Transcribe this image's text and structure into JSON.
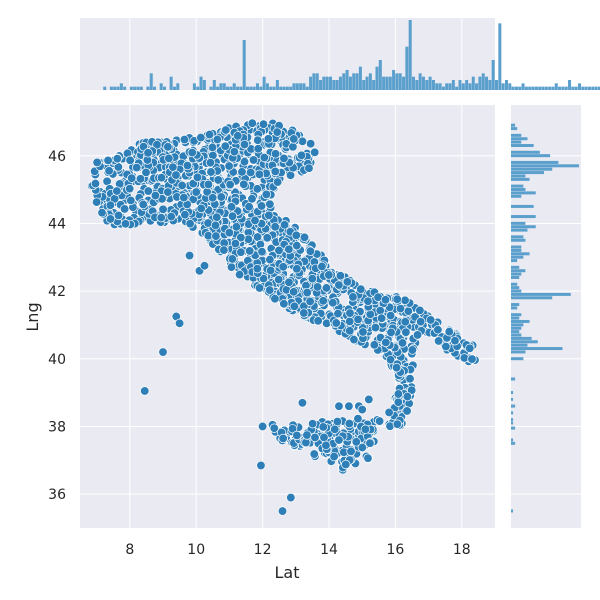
{
  "chart_data": {
    "type": "scatter",
    "kind": "joint plot with marginal histograms",
    "xlabel": "Lat",
    "ylabel": "Lng",
    "xlim": [
      6.5,
      19.0
    ],
    "ylim": [
      35.0,
      47.5
    ],
    "x_ticks": [
      8,
      10,
      12,
      14,
      16,
      18
    ],
    "y_ticks": [
      36,
      38,
      40,
      42,
      44,
      46
    ],
    "x_tick_labels": [
      "8",
      "10",
      "12",
      "14",
      "16",
      "18"
    ],
    "y_tick_labels": [
      "36",
      "38",
      "40",
      "42",
      "44",
      "46"
    ],
    "grid": true,
    "style": "seaborn darkgrid",
    "colors": {
      "point": "#2e7fb8",
      "point_edge": "#ffffff",
      "bar": "#5b9fcd",
      "panel_bg": "#eaeaf2",
      "grid": "#ffffff"
    },
    "points_approx": "dense cloud of several thousand points tracing the shape of Italy",
    "outlier_points": [
      [
        8.45,
        39.05
      ],
      [
        9.0,
        40.2
      ],
      [
        9.4,
        41.25
      ],
      [
        9.5,
        41.05
      ],
      [
        9.8,
        43.05
      ],
      [
        10.1,
        42.6
      ],
      [
        10.25,
        42.75
      ],
      [
        12.0,
        38.0
      ],
      [
        12.3,
        38.05
      ],
      [
        12.35,
        37.95
      ],
      [
        13.2,
        38.7
      ],
      [
        14.3,
        38.6
      ],
      [
        14.3,
        37.6
      ],
      [
        14.6,
        38.6
      ],
      [
        14.9,
        38.6
      ],
      [
        15.2,
        38.8
      ],
      [
        11.95,
        36.85
      ],
      [
        12.85,
        35.9
      ],
      [
        12.6,
        35.5
      ],
      [
        15.0,
        38.5
      ]
    ],
    "marginal_x_histogram": {
      "bin_start": 6.5,
      "bin_width": 0.1,
      "counts": [
        0,
        0,
        0,
        0,
        0,
        0,
        0,
        1,
        0,
        1,
        1,
        1,
        2,
        1,
        0,
        1,
        1,
        1,
        1,
        0,
        1,
        5,
        1,
        0,
        2,
        1,
        0,
        4,
        1,
        2,
        0,
        0,
        0,
        0,
        2,
        1,
        4,
        3,
        0,
        1,
        3,
        1,
        2,
        2,
        1,
        1,
        2,
        1,
        1,
        15,
        1,
        1,
        1,
        2,
        1,
        4,
        2,
        1,
        1,
        3,
        1,
        1,
        1,
        1,
        2,
        2,
        2,
        2,
        1,
        4,
        5,
        5,
        3,
        4,
        4,
        4,
        3,
        3,
        4,
        5,
        6,
        4,
        5,
        5,
        7,
        3,
        4,
        5,
        3,
        7,
        9,
        4,
        4,
        4,
        6,
        5,
        5,
        4,
        13,
        21,
        4,
        3,
        5,
        4,
        3,
        4,
        3,
        2,
        2,
        1,
        2,
        2,
        3,
        1,
        3,
        2,
        3,
        2,
        4,
        2,
        4,
        5,
        4,
        3,
        9,
        3,
        20,
        2,
        3,
        2,
        1,
        1,
        1,
        2,
        1,
        1,
        1,
        1,
        1,
        1,
        1,
        1,
        1,
        2,
        1,
        1,
        1,
        3,
        1,
        1,
        2,
        1,
        1,
        1,
        1,
        1,
        1,
        1,
        1,
        0,
        1,
        2,
        1,
        2,
        1,
        1,
        1,
        2,
        1,
        1,
        1,
        1,
        2,
        0,
        1,
        1,
        1,
        1,
        1,
        1,
        1,
        2,
        1,
        1,
        1,
        1,
        1,
        1,
        1,
        1,
        1,
        1,
        2,
        1,
        1,
        1,
        1,
        1,
        3,
        1,
        1,
        2,
        1,
        1,
        1,
        1,
        2,
        1,
        1,
        1,
        1,
        2,
        1,
        1,
        1,
        1,
        1,
        1,
        2,
        1,
        1,
        2,
        1,
        1,
        1,
        1,
        1,
        1,
        2,
        1,
        1,
        1,
        1,
        1,
        2,
        1,
        1,
        1,
        1,
        1,
        1,
        1,
        1,
        2,
        1,
        1,
        1,
        1,
        1,
        1,
        1,
        2,
        1,
        1,
        1,
        1,
        1,
        1,
        1,
        1,
        1,
        1,
        1,
        1,
        1,
        1,
        1,
        1,
        1,
        1,
        1,
        1,
        1,
        1,
        1,
        1,
        1,
        1,
        1,
        1,
        1,
        1,
        1,
        1,
        1,
        1,
        1,
        1,
        1,
        1,
        1,
        1,
        1,
        1,
        1,
        1,
        1,
        1,
        1,
        1,
        1,
        1,
        1,
        1,
        1,
        1,
        1,
        1,
        1,
        1,
        1,
        1,
        1,
        1,
        1,
        1,
        1
      ]
    },
    "marginal_y_histogram": {
      "bins": [
        [
          35.5,
          1
        ],
        [
          36.8,
          0
        ],
        [
          37.5,
          2
        ],
        [
          37.6,
          1
        ],
        [
          37.95,
          2
        ],
        [
          38.1,
          1
        ],
        [
          38.2,
          1
        ],
        [
          38.4,
          1
        ],
        [
          38.6,
          2
        ],
        [
          38.8,
          1
        ],
        [
          39.0,
          1
        ],
        [
          39.4,
          2
        ],
        [
          40.0,
          6
        ],
        [
          40.2,
          7
        ],
        [
          40.3,
          25
        ],
        [
          40.4,
          8
        ],
        [
          40.5,
          13
        ],
        [
          40.6,
          10
        ],
        [
          40.7,
          5
        ],
        [
          40.8,
          4
        ],
        [
          40.9,
          5
        ],
        [
          41.0,
          6
        ],
        [
          41.1,
          9
        ],
        [
          41.2,
          4
        ],
        [
          41.3,
          5
        ],
        [
          41.5,
          3
        ],
        [
          41.6,
          4
        ],
        [
          41.8,
          20
        ],
        [
          41.9,
          29
        ],
        [
          42.0,
          5
        ],
        [
          42.1,
          4
        ],
        [
          42.2,
          3
        ],
        [
          42.4,
          4
        ],
        [
          42.5,
          5
        ],
        [
          42.6,
          7
        ],
        [
          42.7,
          4
        ],
        [
          42.9,
          3
        ],
        [
          43.0,
          6
        ],
        [
          43.1,
          9
        ],
        [
          43.2,
          5
        ],
        [
          43.3,
          5
        ],
        [
          43.5,
          7
        ],
        [
          43.6,
          6
        ],
        [
          43.8,
          8
        ],
        [
          43.9,
          12
        ],
        [
          44.0,
          7
        ],
        [
          44.2,
          12
        ],
        [
          44.5,
          11
        ],
        [
          44.8,
          5
        ],
        [
          44.9,
          12
        ],
        [
          45.0,
          7
        ],
        [
          45.1,
          6
        ],
        [
          45.3,
          9
        ],
        [
          45.4,
          7
        ],
        [
          45.5,
          16
        ],
        [
          45.6,
          20
        ],
        [
          45.7,
          33
        ],
        [
          45.8,
          23
        ],
        [
          46.0,
          19
        ],
        [
          46.1,
          14
        ],
        [
          46.3,
          11
        ],
        [
          46.4,
          5
        ],
        [
          46.5,
          8
        ],
        [
          46.6,
          5
        ],
        [
          46.8,
          3
        ],
        [
          46.9,
          2
        ]
      ]
    }
  }
}
